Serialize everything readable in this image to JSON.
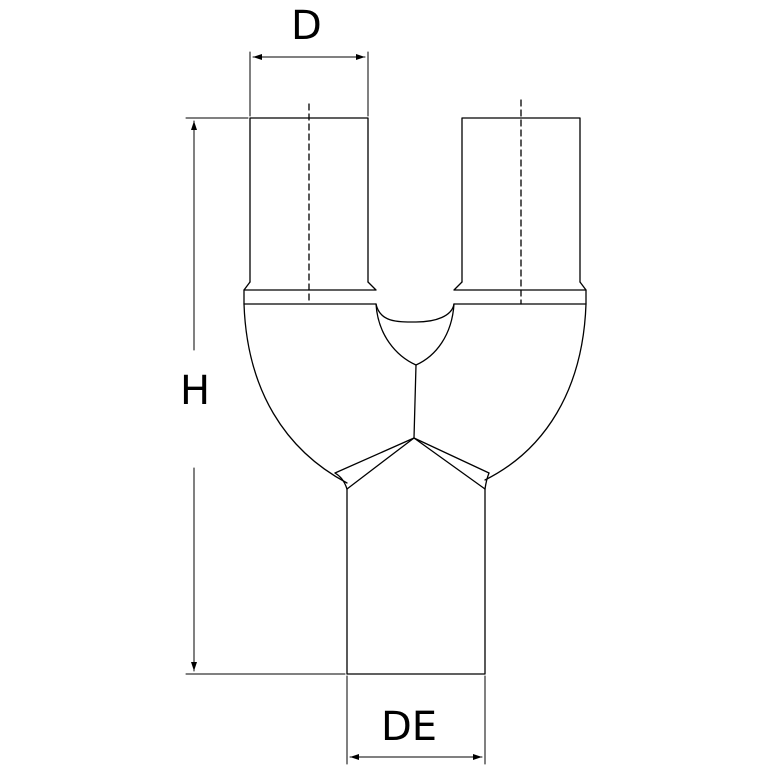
{
  "labels": {
    "inlet_diameter": "D",
    "height": "H",
    "outlet_diameter": "DE"
  },
  "colors": {
    "line": "#000000",
    "background": "#ffffff"
  }
}
